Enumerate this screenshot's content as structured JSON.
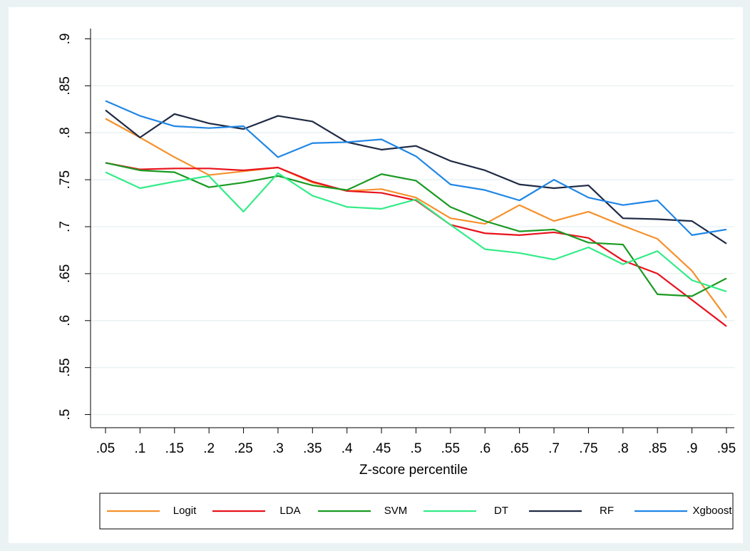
{
  "chart_data": {
    "type": "line",
    "x_label": "Z-score percentile",
    "x": [
      0.05,
      0.1,
      0.15,
      0.2,
      0.25,
      0.3,
      0.35,
      0.4,
      0.45,
      0.5,
      0.55,
      0.6,
      0.65,
      0.7,
      0.75,
      0.8,
      0.85,
      0.9,
      0.95
    ],
    "xlim": [
      0.0283,
      0.9614
    ],
    "xticks": [
      {
        "value": 0.05,
        "label": ".05"
      },
      {
        "value": 0.1,
        "label": ".1"
      },
      {
        "value": 0.15,
        "label": ".15"
      },
      {
        "value": 0.2,
        "label": ".2"
      },
      {
        "value": 0.25,
        "label": ".25"
      },
      {
        "value": 0.3,
        "label": ".3"
      },
      {
        "value": 0.35,
        "label": ".35"
      },
      {
        "value": 0.4,
        "label": ".4"
      },
      {
        "value": 0.45,
        "label": ".45"
      },
      {
        "value": 0.5,
        "label": ".5"
      },
      {
        "value": 0.55,
        "label": ".55"
      },
      {
        "value": 0.6,
        "label": ".6"
      },
      {
        "value": 0.65,
        "label": ".65"
      },
      {
        "value": 0.7,
        "label": ".7"
      },
      {
        "value": 0.75,
        "label": ".75"
      },
      {
        "value": 0.8,
        "label": ".8"
      },
      {
        "value": 0.85,
        "label": ".85"
      },
      {
        "value": 0.9,
        "label": ".9"
      },
      {
        "value": 0.95,
        "label": ".95"
      }
    ],
    "ylim": [
      0.486,
      0.911
    ],
    "yticks": [
      {
        "value": 0.5,
        "label": ".5"
      },
      {
        "value": 0.55,
        "label": ".55"
      },
      {
        "value": 0.6,
        "label": ".6"
      },
      {
        "value": 0.65,
        "label": ".65"
      },
      {
        "value": 0.7,
        "label": ".7"
      },
      {
        "value": 0.75,
        "label": ".75"
      },
      {
        "value": 0.8,
        "label": ".8"
      },
      {
        "value": 0.85,
        "label": ".85"
      },
      {
        "value": 0.9,
        "label": ".9"
      }
    ],
    "grid": true,
    "legend": "bottom",
    "series": [
      {
        "name": "Logit",
        "color": "#f5912c",
        "values": [
          0.815,
          0.795,
          0.774,
          0.755,
          0.759,
          0.763,
          0.747,
          0.738,
          0.74,
          0.731,
          0.709,
          0.703,
          0.723,
          0.706,
          0.716,
          0.701,
          0.687,
          0.653,
          0.603
        ]
      },
      {
        "name": "LDA",
        "color": "#e8121c",
        "values": [
          0.768,
          0.761,
          0.762,
          0.762,
          0.76,
          0.763,
          0.748,
          0.738,
          0.736,
          0.728,
          0.702,
          0.693,
          0.691,
          0.694,
          0.688,
          0.664,
          0.65,
          0.622,
          0.594
        ]
      },
      {
        "name": "SVM",
        "color": "#1a9a22",
        "values": [
          0.768,
          0.76,
          0.758,
          0.742,
          0.747,
          0.754,
          0.744,
          0.739,
          0.756,
          0.749,
          0.721,
          0.706,
          0.695,
          0.697,
          0.683,
          0.681,
          0.628,
          0.626,
          0.645
        ]
      },
      {
        "name": "DT",
        "color": "#33ec88",
        "values": [
          0.758,
          0.741,
          0.748,
          0.754,
          0.716,
          0.757,
          0.733,
          0.721,
          0.719,
          0.729,
          0.702,
          0.676,
          0.672,
          0.665,
          0.678,
          0.66,
          0.674,
          0.643,
          0.631
        ]
      },
      {
        "name": "RF",
        "color": "#1f2a44",
        "values": [
          0.824,
          0.795,
          0.82,
          0.81,
          0.804,
          0.818,
          0.812,
          0.79,
          0.782,
          0.786,
          0.77,
          0.76,
          0.745,
          0.741,
          0.744,
          0.709,
          0.708,
          0.706,
          0.682
        ]
      },
      {
        "name": "Xgboost",
        "color": "#1f86e4",
        "values": [
          0.834,
          0.818,
          0.807,
          0.805,
          0.807,
          0.774,
          0.789,
          0.79,
          0.793,
          0.775,
          0.745,
          0.739,
          0.728,
          0.75,
          0.731,
          0.723,
          0.728,
          0.691,
          0.697
        ]
      }
    ]
  }
}
